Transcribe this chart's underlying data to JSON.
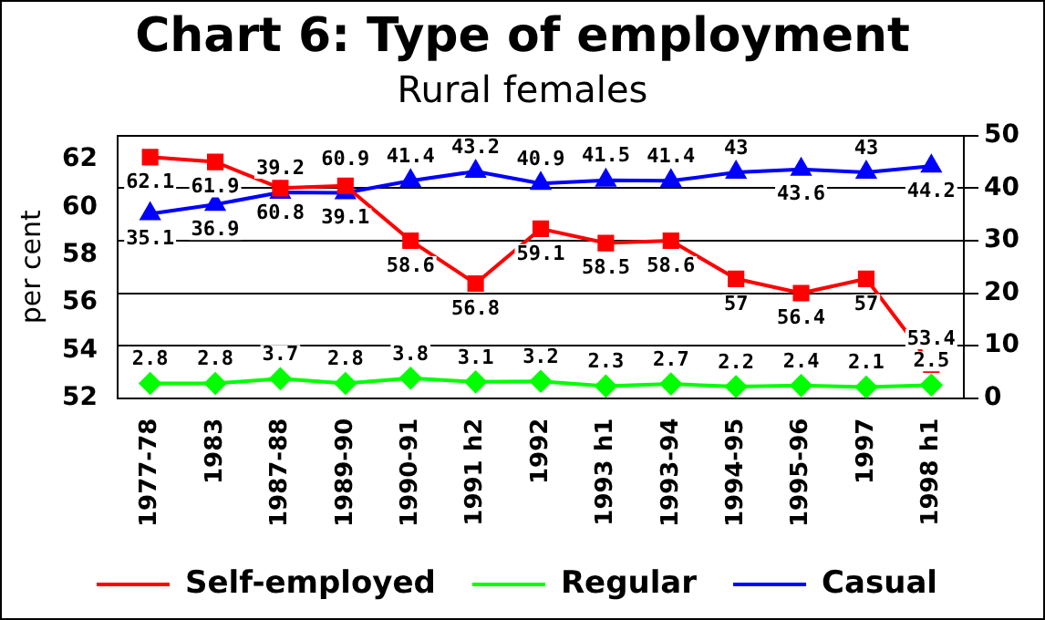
{
  "chart_data": {
    "type": "line",
    "title": "Chart 6: Type of employment",
    "subtitle": "Rural females",
    "ylabel": "per cent",
    "categories": [
      "1977-78",
      "1983",
      "1987-88",
      "1989-90",
      "1990-91",
      "1991 h2",
      "1992",
      "1993 h1",
      "1993-94",
      "1994-95",
      "1995-96",
      "1997",
      "1998 h1"
    ],
    "series": [
      {
        "name": "Self-employed",
        "color": "#ff0000",
        "marker": "square",
        "values": [
          62.1,
          61.9,
          60.8,
          60.9,
          58.6,
          56.8,
          59.1,
          58.5,
          58.6,
          57,
          56.4,
          57,
          53.4
        ]
      },
      {
        "name": "Regular",
        "color": "#00ff00",
        "marker": "diamond",
        "axis": "y2",
        "values": [
          2.8,
          2.8,
          3.7,
          2.8,
          3.8,
          3.1,
          3.2,
          2.3,
          2.7,
          2.2,
          2.4,
          2.1,
          2.5
        ]
      },
      {
        "name": "Casual",
        "color": "#0000ff",
        "marker": "triangle",
        "axis": "y2",
        "values": [
          35.1,
          36.9,
          39.2,
          39.1,
          41.4,
          43.2,
          40.9,
          41.5,
          41.4,
          43,
          43.6,
          43,
          44.2
        ]
      }
    ],
    "ylim": [
      52,
      63
    ],
    "yticks": [
      52,
      54,
      56,
      58,
      60,
      62
    ],
    "y2lim": [
      0,
      50
    ],
    "y2ticks": [
      0,
      10,
      20,
      30,
      40,
      50
    ],
    "grid": "y",
    "legend": "bottom",
    "data_labels": true
  }
}
